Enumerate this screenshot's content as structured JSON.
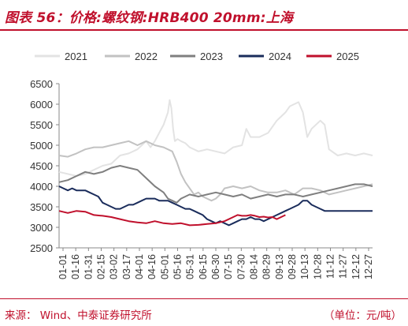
{
  "title": "图表 56：价格:螺纹钢:HRB400 20mm:上海",
  "footer": {
    "source": "来源：  Wind、中泰证券研究所",
    "unit": "（单位：元/吨）"
  },
  "colors": {
    "accent": "#c0102c"
  },
  "chart_data": {
    "type": "line",
    "x_tick_labels": [
      "01-01",
      "01-16",
      "01-31",
      "02-15",
      "03-02",
      "03-17",
      "04-01",
      "04-16",
      "05-01",
      "05-16",
      "05-31",
      "06-15",
      "06-30",
      "07-15",
      "07-30",
      "08-14",
      "08-29",
      "09-13",
      "09-28",
      "10-13",
      "10-28",
      "11-12",
      "11-27",
      "12-12",
      "12-27"
    ],
    "ylim": [
      2500,
      6500
    ],
    "yticks": [
      2500,
      3000,
      3500,
      4000,
      4500,
      5000,
      5500,
      6000,
      6500
    ],
    "legend_position": "top",
    "series": [
      {
        "name": "2021",
        "color": "#e3e3e3",
        "x": [
          0,
          10,
          20,
          30,
          40,
          50,
          60,
          70,
          80,
          90,
          95,
          100,
          105,
          110,
          115,
          120,
          125,
          127,
          129,
          131,
          133,
          136,
          140,
          145,
          150,
          160,
          170,
          180,
          190,
          200,
          210,
          215,
          220,
          230,
          240,
          250,
          255,
          260,
          265,
          270,
          275,
          280,
          285,
          290,
          300,
          305,
          310,
          320,
          330,
          340,
          350,
          360
        ],
        "values": [
          4350,
          4300,
          4250,
          4300,
          4400,
          4500,
          4550,
          4750,
          4800,
          4900,
          5000,
          5100,
          4950,
          5100,
          5300,
          5500,
          5800,
          6100,
          5900,
          5400,
          5100,
          5150,
          5100,
          5050,
          4950,
          4850,
          4900,
          4850,
          4800,
          4950,
          5000,
          5400,
          5200,
          5200,
          5300,
          5600,
          5700,
          5800,
          5950,
          6000,
          6050,
          5800,
          5200,
          5400,
          5600,
          5500,
          4900,
          4750,
          4800,
          4750,
          4800,
          4750
        ]
      },
      {
        "name": "2022",
        "color": "#c2c2c2",
        "x": [
          0,
          10,
          20,
          30,
          40,
          50,
          60,
          70,
          80,
          90,
          100,
          110,
          120,
          130,
          135,
          140,
          145,
          150,
          155,
          160,
          165,
          170,
          175,
          180,
          185,
          190,
          200,
          210,
          220,
          230,
          240,
          250,
          260,
          270,
          280,
          290,
          300,
          310,
          320,
          330,
          340,
          350,
          360
        ],
        "values": [
          4750,
          4720,
          4800,
          4900,
          4950,
          4950,
          5000,
          5050,
          5100,
          5000,
          5100,
          5000,
          4950,
          4850,
          4600,
          4300,
          4100,
          3950,
          3800,
          3850,
          3750,
          3700,
          3650,
          3700,
          3800,
          3950,
          4000,
          3950,
          4000,
          3900,
          3850,
          3850,
          3900,
          3800,
          3950,
          3950,
          3900,
          3800,
          3850,
          3900,
          3950,
          4000,
          4050
        ]
      },
      {
        "name": "2023",
        "color": "#7f7f7f",
        "x": [
          0,
          10,
          20,
          30,
          40,
          50,
          60,
          70,
          80,
          90,
          100,
          110,
          120,
          125,
          130,
          135,
          140,
          145,
          150,
          160,
          170,
          180,
          190,
          200,
          210,
          220,
          230,
          240,
          250,
          260,
          270,
          280,
          290,
          300,
          310,
          320,
          330,
          340,
          350,
          360
        ],
        "values": [
          4100,
          4150,
          4250,
          4350,
          4300,
          4350,
          4450,
          4500,
          4450,
          4400,
          4200,
          4000,
          3850,
          3700,
          3650,
          3600,
          3700,
          3750,
          3800,
          3750,
          3800,
          3850,
          3800,
          3750,
          3800,
          3700,
          3750,
          3800,
          3750,
          3800,
          3800,
          3750,
          3800,
          3850,
          3900,
          3950,
          4000,
          4050,
          4050,
          4000
        ]
      },
      {
        "name": "2024",
        "color": "#1a2c5b",
        "x": [
          0,
          5,
          10,
          15,
          20,
          25,
          30,
          35,
          40,
          45,
          50,
          55,
          60,
          65,
          70,
          75,
          80,
          85,
          90,
          95,
          100,
          105,
          110,
          115,
          120,
          125,
          130,
          135,
          140,
          145,
          150,
          155,
          160,
          165,
          170,
          175,
          180,
          185,
          190,
          195,
          200,
          205,
          210,
          215,
          220,
          225,
          230,
          235,
          240,
          245,
          250,
          255,
          260,
          265,
          270,
          275,
          280,
          285,
          290,
          295,
          300,
          305,
          310,
          315,
          320,
          325,
          330,
          335,
          340,
          345,
          350,
          355,
          360
        ],
        "values": [
          4000,
          3950,
          3900,
          3950,
          3900,
          3900,
          3900,
          3850,
          3800,
          3750,
          3600,
          3550,
          3500,
          3450,
          3450,
          3500,
          3550,
          3550,
          3600,
          3650,
          3700,
          3700,
          3700,
          3650,
          3650,
          3650,
          3600,
          3550,
          3500,
          3450,
          3450,
          3400,
          3350,
          3300,
          3200,
          3150,
          3100,
          3150,
          3100,
          3050,
          3100,
          3150,
          3200,
          3200,
          3250,
          3200,
          3200,
          3150,
          3200,
          3250,
          3300,
          3350,
          3400,
          3450,
          3500,
          3550,
          3650,
          3650,
          3550,
          3500,
          3450,
          3400,
          3400,
          3400,
          3400,
          3400,
          3400,
          3400,
          3400,
          3400,
          3400,
          3400,
          3400
        ]
      },
      {
        "name": "2025",
        "color": "#c0102c",
        "x": [
          0,
          10,
          20,
          30,
          40,
          50,
          60,
          70,
          80,
          90,
          100,
          110,
          120,
          130,
          140,
          150,
          160,
          170,
          180,
          190,
          200,
          205,
          210,
          215,
          220,
          225,
          230,
          235,
          240,
          245,
          250,
          255,
          260
        ],
        "values": [
          3400,
          3350,
          3400,
          3380,
          3300,
          3280,
          3250,
          3200,
          3150,
          3120,
          3100,
          3150,
          3100,
          3080,
          3100,
          3050,
          3060,
          3080,
          3100,
          3150,
          3250,
          3300,
          3280,
          3280,
          3300,
          3280,
          3250,
          3260,
          3240,
          3250,
          3200,
          3250,
          3300
        ]
      }
    ]
  }
}
